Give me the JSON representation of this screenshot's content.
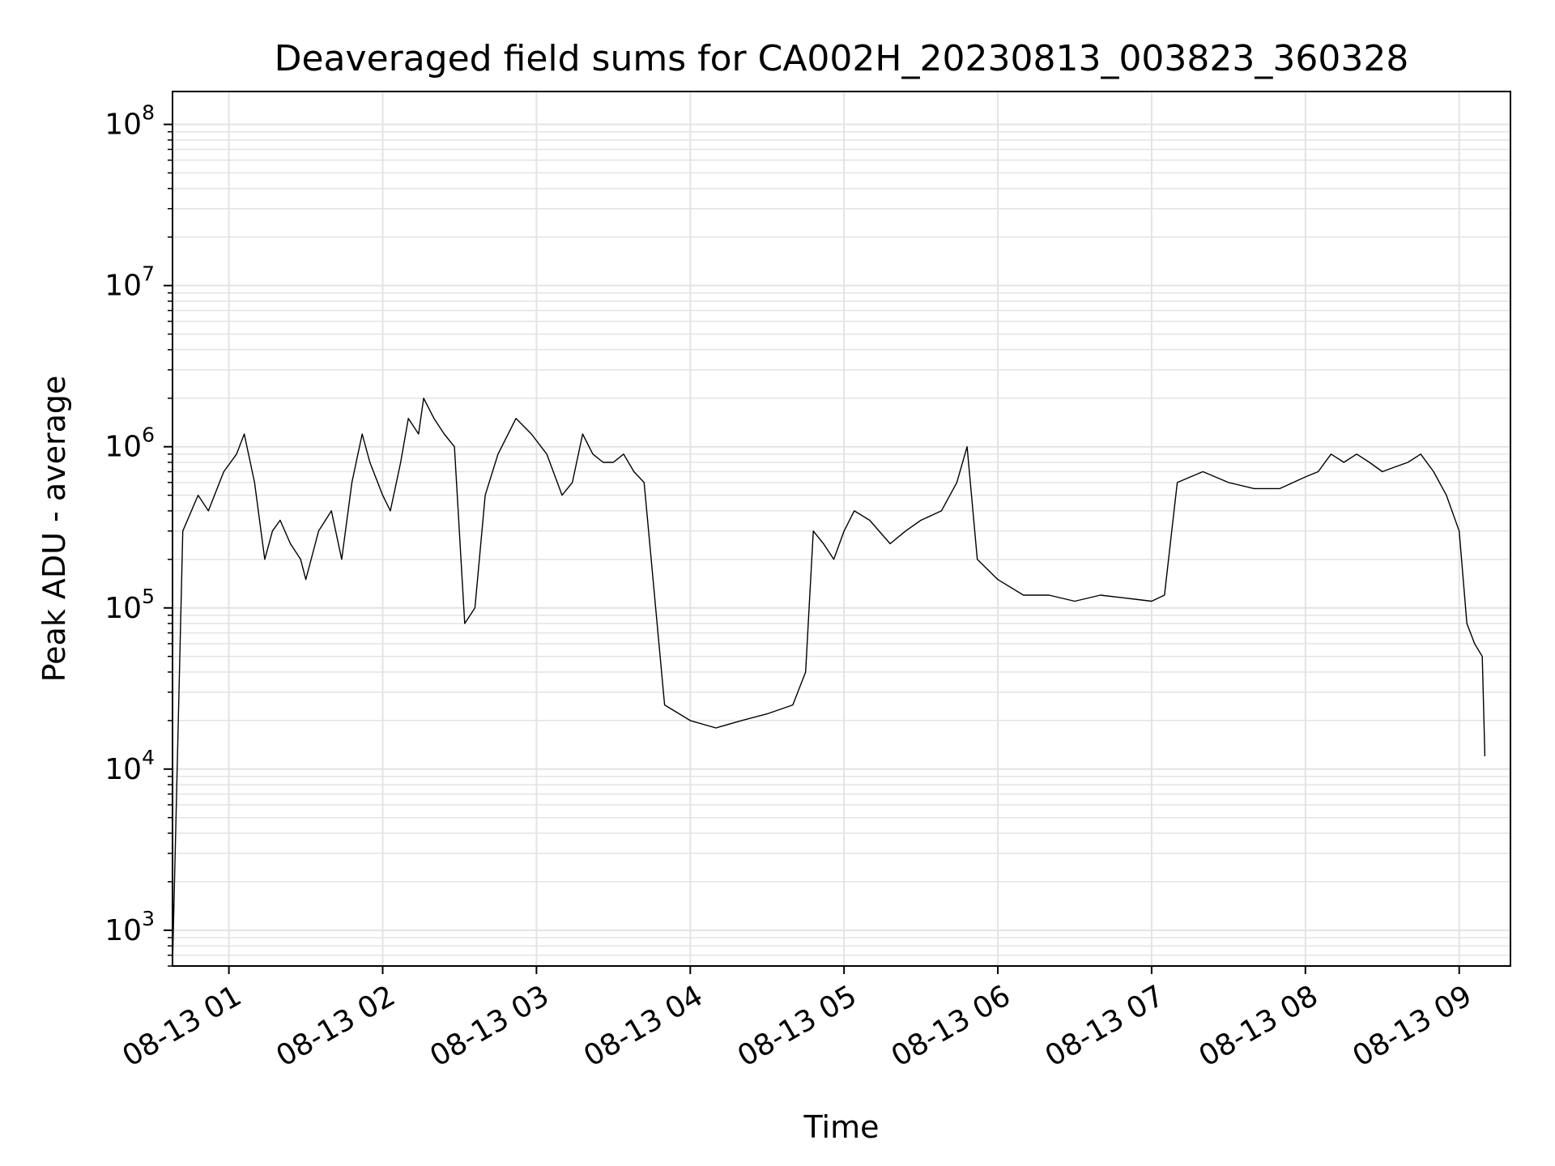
{
  "chart_data": {
    "type": "line",
    "title": "Deaveraged field sums for CA002H_20230813_003823_360328",
    "xlabel": "Time",
    "ylabel": "Peak ADU - average",
    "yscale": "log",
    "ylim": [
      600,
      160000000
    ],
    "xlim": [
      "2023-08-13 00:38:00",
      "2023-08-13 09:20:00"
    ],
    "grid": true,
    "line_color": "#000000",
    "x_ticks": [
      {
        "value": "2023-08-13 01:00",
        "label": "08-13 01"
      },
      {
        "value": "2023-08-13 02:00",
        "label": "08-13 02"
      },
      {
        "value": "2023-08-13 03:00",
        "label": "08-13 03"
      },
      {
        "value": "2023-08-13 04:00",
        "label": "08-13 04"
      },
      {
        "value": "2023-08-13 05:00",
        "label": "08-13 05"
      },
      {
        "value": "2023-08-13 06:00",
        "label": "08-13 06"
      },
      {
        "value": "2023-08-13 07:00",
        "label": "08-13 07"
      },
      {
        "value": "2023-08-13 08:00",
        "label": "08-13 08"
      },
      {
        "value": "2023-08-13 09:00",
        "label": "08-13 09"
      }
    ],
    "y_ticks": [
      {
        "value": 1000,
        "base": "10",
        "exp": "3"
      },
      {
        "value": 10000,
        "base": "10",
        "exp": "4"
      },
      {
        "value": 100000,
        "base": "10",
        "exp": "5"
      },
      {
        "value": 1000000,
        "base": "10",
        "exp": "6"
      },
      {
        "value": 10000000,
        "base": "10",
        "exp": "7"
      },
      {
        "value": 100000000,
        "base": "10",
        "exp": "8"
      }
    ],
    "series": [
      {
        "x": [
          "2023-08-13 00:38",
          "2023-08-13 00:42",
          "2023-08-13 00:48",
          "2023-08-13 00:52",
          "2023-08-13 00:58",
          "2023-08-13 01:03",
          "2023-08-13 01:06",
          "2023-08-13 01:10",
          "2023-08-13 01:14",
          "2023-08-13 01:17",
          "2023-08-13 01:20",
          "2023-08-13 01:24",
          "2023-08-13 01:28",
          "2023-08-13 01:30",
          "2023-08-13 01:35",
          "2023-08-13 01:40",
          "2023-08-13 01:44",
          "2023-08-13 01:48",
          "2023-08-13 01:52",
          "2023-08-13 01:55",
          "2023-08-13 02:00",
          "2023-08-13 02:03",
          "2023-08-13 02:07",
          "2023-08-13 02:10",
          "2023-08-13 02:14",
          "2023-08-13 02:16",
          "2023-08-13 02:20",
          "2023-08-13 02:24",
          "2023-08-13 02:28",
          "2023-08-13 02:32",
          "2023-08-13 02:36",
          "2023-08-13 02:40",
          "2023-08-13 02:45",
          "2023-08-13 02:52",
          "2023-08-13 02:58",
          "2023-08-13 03:04",
          "2023-08-13 03:10",
          "2023-08-13 03:14",
          "2023-08-13 03:18",
          "2023-08-13 03:22",
          "2023-08-13 03:26",
          "2023-08-13 03:30",
          "2023-08-13 03:34",
          "2023-08-13 03:38",
          "2023-08-13 03:42",
          "2023-08-13 03:50",
          "2023-08-13 04:00",
          "2023-08-13 04:10",
          "2023-08-13 04:20",
          "2023-08-13 04:30",
          "2023-08-13 04:40",
          "2023-08-13 04:45",
          "2023-08-13 04:48",
          "2023-08-13 04:52",
          "2023-08-13 04:56",
          "2023-08-13 05:00",
          "2023-08-13 05:04",
          "2023-08-13 05:10",
          "2023-08-13 05:18",
          "2023-08-13 05:24",
          "2023-08-13 05:30",
          "2023-08-13 05:38",
          "2023-08-13 05:44",
          "2023-08-13 05:48",
          "2023-08-13 05:52",
          "2023-08-13 06:00",
          "2023-08-13 06:10",
          "2023-08-13 06:20",
          "2023-08-13 06:30",
          "2023-08-13 06:40",
          "2023-08-13 06:50",
          "2023-08-13 07:00",
          "2023-08-13 07:05",
          "2023-08-13 07:10",
          "2023-08-13 07:20",
          "2023-08-13 07:30",
          "2023-08-13 07:40",
          "2023-08-13 07:50",
          "2023-08-13 08:00",
          "2023-08-13 08:05",
          "2023-08-13 08:10",
          "2023-08-13 08:15",
          "2023-08-13 08:20",
          "2023-08-13 08:25",
          "2023-08-13 08:30",
          "2023-08-13 08:35",
          "2023-08-13 08:40",
          "2023-08-13 08:45",
          "2023-08-13 08:50",
          "2023-08-13 08:55",
          "2023-08-13 09:00",
          "2023-08-13 09:03",
          "2023-08-13 09:06",
          "2023-08-13 09:09",
          "2023-08-13 09:10"
        ],
        "y": [
          600,
          300000,
          500000,
          400000,
          700000,
          900000,
          1200000,
          600000,
          200000,
          300000,
          350000,
          250000,
          200000,
          150000,
          300000,
          400000,
          200000,
          600000,
          1200000,
          800000,
          500000,
          400000,
          800000,
          1500000,
          1200000,
          2000000,
          1500000,
          1200000,
          1000000,
          80000,
          100000,
          500000,
          900000,
          1500000,
          1200000,
          900000,
          500000,
          600000,
          1200000,
          900000,
          800000,
          800000,
          900000,
          700000,
          600000,
          25000,
          20000,
          18000,
          20000,
          22000,
          25000,
          40000,
          300000,
          250000,
          200000,
          300000,
          400000,
          350000,
          250000,
          300000,
          350000,
          400000,
          600000,
          1000000,
          200000,
          150000,
          120000,
          120000,
          110000,
          120000,
          115000,
          110000,
          120000,
          600000,
          700000,
          600000,
          550000,
          550000,
          650000,
          700000,
          900000,
          800000,
          900000,
          800000,
          700000,
          750000,
          800000,
          900000,
          700000,
          500000,
          300000,
          80000,
          60000,
          50000,
          12000
        ]
      }
    ]
  }
}
